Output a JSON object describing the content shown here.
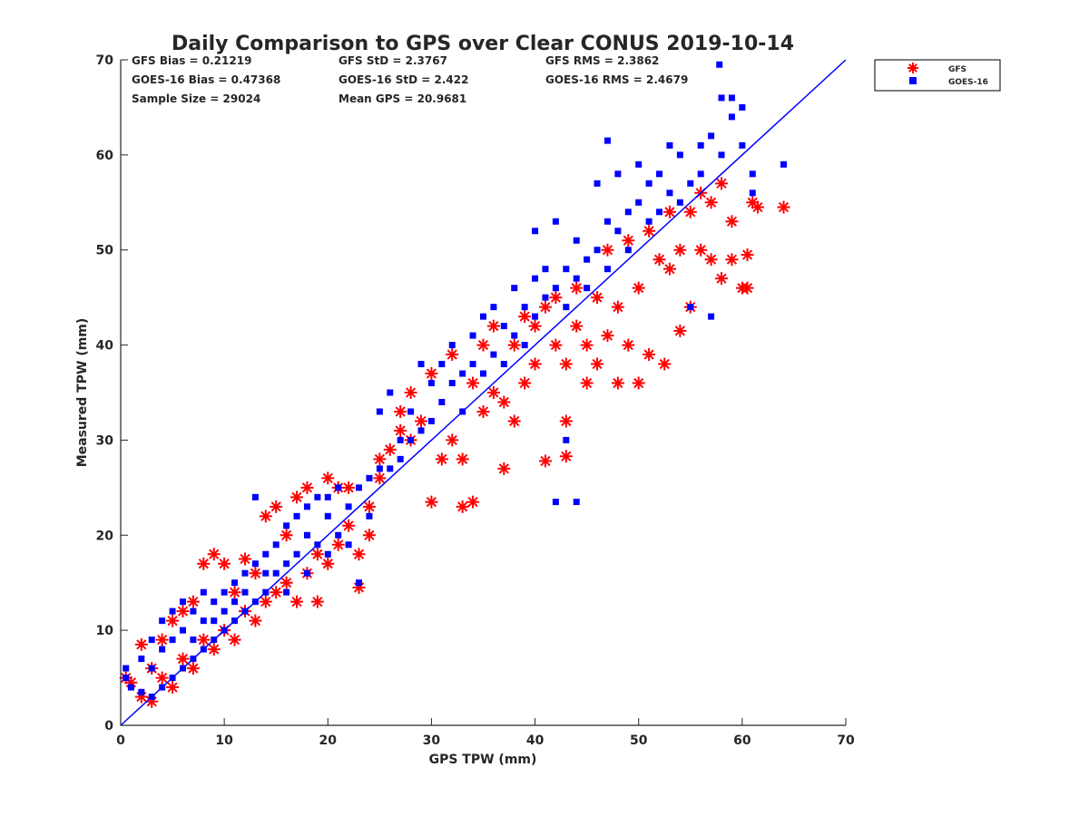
{
  "chart_data": {
    "type": "scatter",
    "title": "Daily Comparison to GPS over Clear CONUS 2019-10-14",
    "xlabel": "GPS TPW (mm)",
    "ylabel": "Measured TPW (mm)",
    "xlim": [
      0,
      70
    ],
    "ylim": [
      0,
      70
    ],
    "xticks": [
      "0",
      "10",
      "20",
      "30",
      "40",
      "50",
      "60",
      "70"
    ],
    "yticks": [
      "0",
      "10",
      "20",
      "30",
      "40",
      "50",
      "60",
      "70"
    ],
    "grid": false,
    "legend_position": "outside-top-right",
    "one_to_one_line": {
      "from": [
        0,
        0
      ],
      "to": [
        70,
        70
      ],
      "color": "#0000ff"
    },
    "stats": [
      [
        "GFS Bias = 0.21219",
        "GFS StD = 2.3767",
        "GFS RMS = 2.3862"
      ],
      [
        "GOES-16 Bias = 0.47368",
        "GOES-16 StD = 2.422",
        "GOES-16 RMS = 2.4679"
      ],
      [
        "Sample Size = 29024",
        "Mean GPS = 20.9681",
        ""
      ]
    ],
    "series": [
      {
        "name": "GFS",
        "marker": "asterisk",
        "color": "#ff0000",
        "points": [
          [
            0.5,
            5
          ],
          [
            1,
            4.5
          ],
          [
            2,
            3
          ],
          [
            2,
            8.5
          ],
          [
            3,
            2.5
          ],
          [
            3,
            6
          ],
          [
            4,
            5
          ],
          [
            4,
            9
          ],
          [
            5,
            4
          ],
          [
            5,
            11
          ],
          [
            6,
            7
          ],
          [
            6,
            12
          ],
          [
            7,
            6
          ],
          [
            7,
            13
          ],
          [
            8,
            9
          ],
          [
            8,
            17
          ],
          [
            9,
            18
          ],
          [
            9,
            8
          ],
          [
            10,
            10
          ],
          [
            10,
            17
          ],
          [
            11,
            9
          ],
          [
            11,
            14
          ],
          [
            12,
            12
          ],
          [
            12,
            17.5
          ],
          [
            13,
            11
          ],
          [
            13,
            16
          ],
          [
            14,
            22
          ],
          [
            14,
            13
          ],
          [
            15,
            14
          ],
          [
            15,
            23
          ],
          [
            16,
            15
          ],
          [
            16,
            20
          ],
          [
            17,
            24
          ],
          [
            17,
            13
          ],
          [
            18,
            16
          ],
          [
            18,
            25
          ],
          [
            19,
            18
          ],
          [
            19,
            13
          ],
          [
            20,
            26
          ],
          [
            20,
            17
          ],
          [
            21,
            19
          ],
          [
            21,
            25
          ],
          [
            22,
            21
          ],
          [
            22,
            25
          ],
          [
            23,
            14.5
          ],
          [
            23,
            18
          ],
          [
            24,
            23
          ],
          [
            24,
            20
          ],
          [
            25,
            28
          ],
          [
            25,
            26
          ],
          [
            26,
            29
          ],
          [
            27,
            31
          ],
          [
            27,
            33
          ],
          [
            28,
            35
          ],
          [
            28,
            30
          ],
          [
            29,
            32
          ],
          [
            30,
            23.5
          ],
          [
            30,
            37
          ],
          [
            31,
            28
          ],
          [
            32,
            30
          ],
          [
            32,
            39
          ],
          [
            33,
            23
          ],
          [
            33,
            28
          ],
          [
            34,
            36
          ],
          [
            34,
            23.5
          ],
          [
            35,
            33
          ],
          [
            35,
            40
          ],
          [
            36,
            42
          ],
          [
            36,
            35
          ],
          [
            37,
            34
          ],
          [
            37,
            27
          ],
          [
            38,
            40
          ],
          [
            38,
            32
          ],
          [
            39,
            36
          ],
          [
            39,
            43
          ],
          [
            40,
            42
          ],
          [
            40,
            38
          ],
          [
            41,
            27.8
          ],
          [
            41,
            44
          ],
          [
            42,
            40
          ],
          [
            42,
            45
          ],
          [
            43,
            28.3
          ],
          [
            43,
            32
          ],
          [
            43,
            38
          ],
          [
            44,
            42
          ],
          [
            44,
            46
          ],
          [
            45,
            36
          ],
          [
            45,
            40
          ],
          [
            46,
            45
          ],
          [
            46,
            38
          ],
          [
            47,
            41
          ],
          [
            47,
            50
          ],
          [
            48,
            44
          ],
          [
            48,
            36
          ],
          [
            49,
            40
          ],
          [
            49,
            51
          ],
          [
            50,
            46
          ],
          [
            50,
            36
          ],
          [
            51,
            39
          ],
          [
            51,
            52
          ],
          [
            52,
            49
          ],
          [
            52.5,
            38
          ],
          [
            53,
            48
          ],
          [
            53,
            54
          ],
          [
            54,
            41.5
          ],
          [
            54,
            50
          ],
          [
            55,
            54
          ],
          [
            55,
            44
          ],
          [
            56,
            50
          ],
          [
            56,
            56
          ],
          [
            57,
            55
          ],
          [
            57,
            49
          ],
          [
            58,
            47
          ],
          [
            58,
            57
          ],
          [
            59,
            53
          ],
          [
            59,
            49
          ],
          [
            60,
            46
          ],
          [
            60.5,
            49.5
          ],
          [
            60.5,
            46
          ],
          [
            61,
            55
          ],
          [
            61.5,
            54.5
          ],
          [
            64,
            54.5
          ]
        ]
      },
      {
        "name": "GOES-16",
        "marker": "square",
        "color": "#0000ff",
        "points": [
          [
            0.5,
            5
          ],
          [
            0.5,
            6
          ],
          [
            1,
            4
          ],
          [
            2,
            3.5
          ],
          [
            2,
            7
          ],
          [
            3,
            3
          ],
          [
            3,
            6
          ],
          [
            3,
            9
          ],
          [
            4,
            4
          ],
          [
            4,
            8
          ],
          [
            4,
            11
          ],
          [
            5,
            5
          ],
          [
            5,
            9
          ],
          [
            5,
            12
          ],
          [
            6,
            6
          ],
          [
            6,
            10
          ],
          [
            6,
            13
          ],
          [
            7,
            7
          ],
          [
            7,
            12
          ],
          [
            7,
            9
          ],
          [
            8,
            8
          ],
          [
            8,
            11
          ],
          [
            8,
            14
          ],
          [
            9,
            9
          ],
          [
            9,
            13
          ],
          [
            9,
            11
          ],
          [
            10,
            10
          ],
          [
            10,
            14
          ],
          [
            10,
            12
          ],
          [
            11,
            11
          ],
          [
            11,
            15
          ],
          [
            11,
            13
          ],
          [
            12,
            12
          ],
          [
            12,
            16
          ],
          [
            12,
            14
          ],
          [
            13,
            13
          ],
          [
            13,
            24
          ],
          [
            13,
            17
          ],
          [
            14,
            14
          ],
          [
            14,
            18
          ],
          [
            14,
            16
          ],
          [
            15,
            16
          ],
          [
            15,
            19
          ],
          [
            16,
            17
          ],
          [
            16,
            21
          ],
          [
            16,
            14
          ],
          [
            17,
            18
          ],
          [
            17,
            22
          ],
          [
            18,
            20
          ],
          [
            18,
            23
          ],
          [
            18,
            16
          ],
          [
            19,
            19
          ],
          [
            19,
            24
          ],
          [
            20,
            22
          ],
          [
            20,
            24
          ],
          [
            20,
            18
          ],
          [
            21,
            20
          ],
          [
            21,
            25
          ],
          [
            22,
            23
          ],
          [
            22,
            19
          ],
          [
            23,
            15
          ],
          [
            23,
            25
          ],
          [
            24,
            26
          ],
          [
            24,
            22
          ],
          [
            25,
            27
          ],
          [
            25,
            33
          ],
          [
            26,
            35
          ],
          [
            26,
            27
          ],
          [
            27,
            28
          ],
          [
            27,
            30
          ],
          [
            28,
            30
          ],
          [
            28,
            33
          ],
          [
            29,
            38
          ],
          [
            29,
            31
          ],
          [
            30,
            32
          ],
          [
            30,
            36
          ],
          [
            31,
            34
          ],
          [
            31,
            38
          ],
          [
            32,
            36
          ],
          [
            32,
            40
          ],
          [
            33,
            33
          ],
          [
            33,
            37
          ],
          [
            34,
            38
          ],
          [
            34,
            41
          ],
          [
            35,
            37
          ],
          [
            35,
            43
          ],
          [
            36,
            39
          ],
          [
            36,
            44
          ],
          [
            37,
            42
          ],
          [
            37,
            38
          ],
          [
            38,
            41
          ],
          [
            38,
            46
          ],
          [
            39,
            44
          ],
          [
            39,
            40
          ],
          [
            40,
            43
          ],
          [
            40,
            47
          ],
          [
            40,
            52
          ],
          [
            41,
            45
          ],
          [
            41,
            48
          ],
          [
            42,
            46
          ],
          [
            42,
            23.5
          ],
          [
            42,
            53
          ],
          [
            43,
            48
          ],
          [
            43,
            30
          ],
          [
            43,
            44
          ],
          [
            44,
            47
          ],
          [
            44,
            23.5
          ],
          [
            44,
            51
          ],
          [
            45,
            49
          ],
          [
            45,
            46
          ],
          [
            46,
            50
          ],
          [
            46,
            57
          ],
          [
            47,
            53
          ],
          [
            47,
            61.5
          ],
          [
            47,
            48
          ],
          [
            48,
            52
          ],
          [
            48,
            58
          ],
          [
            49,
            54
          ],
          [
            49,
            50
          ],
          [
            50,
            55
          ],
          [
            50,
            59
          ],
          [
            51,
            53
          ],
          [
            51,
            57
          ],
          [
            52,
            58
          ],
          [
            52,
            54
          ],
          [
            53,
            56
          ],
          [
            53,
            61
          ],
          [
            54,
            60
          ],
          [
            54,
            55
          ],
          [
            55,
            57
          ],
          [
            55,
            44
          ],
          [
            56,
            61
          ],
          [
            56,
            58
          ],
          [
            57,
            62
          ],
          [
            57,
            43
          ],
          [
            57.8,
            69.5
          ],
          [
            58,
            60
          ],
          [
            58,
            66
          ],
          [
            59,
            66
          ],
          [
            59,
            64
          ],
          [
            60,
            61
          ],
          [
            60,
            65
          ],
          [
            61,
            58
          ],
          [
            61,
            56
          ],
          [
            64,
            59
          ]
        ]
      }
    ]
  }
}
